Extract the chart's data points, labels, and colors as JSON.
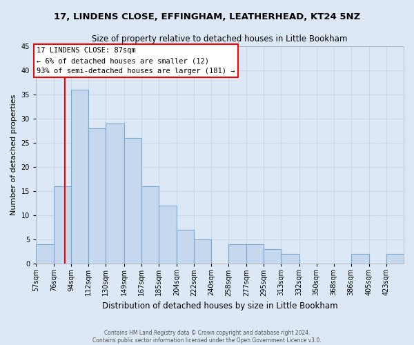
{
  "title": "17, LINDENS CLOSE, EFFINGHAM, LEATHERHEAD, KT24 5NZ",
  "subtitle": "Size of property relative to detached houses in Little Bookham",
  "xlabel": "Distribution of detached houses by size in Little Bookham",
  "ylabel": "Number of detached properties",
  "footer_line1": "Contains HM Land Registry data © Crown copyright and database right 2024.",
  "footer_line2": "Contains public sector information licensed under the Open Government Licence v3.0.",
  "bar_edges": [
    57,
    76,
    94,
    112,
    130,
    149,
    167,
    185,
    204,
    222,
    240,
    258,
    277,
    295,
    313,
    332,
    350,
    368,
    386,
    405,
    423
  ],
  "bar_heights": [
    4,
    16,
    36,
    28,
    29,
    26,
    16,
    12,
    7,
    5,
    0,
    4,
    4,
    3,
    2,
    0,
    0,
    0,
    2,
    0,
    2
  ],
  "bar_color": "#c5d8ee",
  "bar_edge_color": "#7aaad0",
  "reference_line_x": 87,
  "reference_line_color": "red",
  "ylim": [
    0,
    45
  ],
  "yticks": [
    0,
    5,
    10,
    15,
    20,
    25,
    30,
    35,
    40,
    45
  ],
  "xtick_labels": [
    "57sqm",
    "76sqm",
    "94sqm",
    "112sqm",
    "130sqm",
    "149sqm",
    "167sqm",
    "185sqm",
    "204sqm",
    "222sqm",
    "240sqm",
    "258sqm",
    "277sqm",
    "295sqm",
    "313sqm",
    "332sqm",
    "350sqm",
    "368sqm",
    "386sqm",
    "405sqm",
    "423sqm"
  ],
  "annotation_title": "17 LINDENS CLOSE: 87sqm",
  "annotation_line1": "← 6% of detached houses are smaller (12)",
  "annotation_line2": "93% of semi-detached houses are larger (181) →",
  "annotation_box_color": "white",
  "annotation_box_edge_color": "red",
  "grid_color": "#c8d8e8",
  "background_color": "#dce8f5",
  "spine_color": "#aaaaaa"
}
